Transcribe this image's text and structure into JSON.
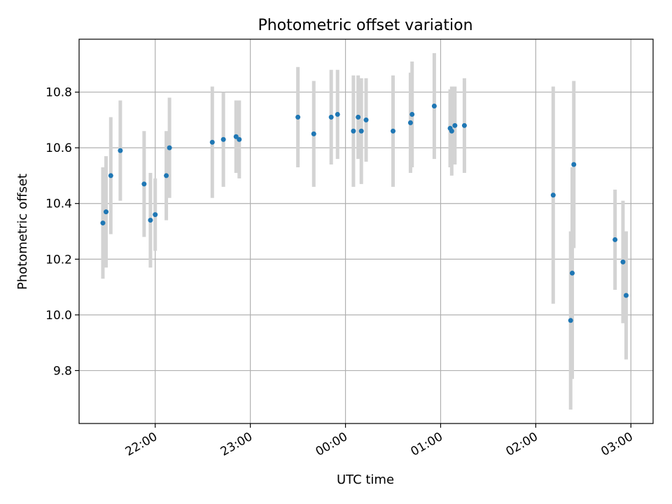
{
  "chart_data": {
    "type": "scatter",
    "title": "Photometric offset variation",
    "xlabel": "UTC time",
    "ylabel": "Photometric offset",
    "x_ticks": [
      "22:00",
      "23:00",
      "00:00",
      "01:00",
      "02:00",
      "03:00"
    ],
    "y_ticks": [
      "9.8",
      "10.0",
      "10.2",
      "10.4",
      "10.6",
      "10.8"
    ],
    "xlim": [
      "21:12",
      "03:14"
    ],
    "ylim": [
      9.61,
      10.99
    ],
    "grid": true,
    "colors": {
      "points": "#1f77b4",
      "errorbars": "#d3d3d3",
      "grid": "#b0b0b0"
    },
    "points": [
      {
        "x": "21:27",
        "y": 10.33,
        "yerr": 0.2
      },
      {
        "x": "21:29",
        "y": 10.37,
        "yerr": 0.2
      },
      {
        "x": "21:32",
        "y": 10.5,
        "yerr": 0.21
      },
      {
        "x": "21:38",
        "y": 10.59,
        "yerr": 0.18
      },
      {
        "x": "21:53",
        "y": 10.47,
        "yerr": 0.19
      },
      {
        "x": "21:57",
        "y": 10.34,
        "yerr": 0.17
      },
      {
        "x": "22:00",
        "y": 10.36,
        "yerr": 0.13
      },
      {
        "x": "22:07",
        "y": 10.5,
        "yerr": 0.16
      },
      {
        "x": "22:09",
        "y": 10.6,
        "yerr": 0.18
      },
      {
        "x": "22:36",
        "y": 10.62,
        "yerr": 0.2
      },
      {
        "x": "22:43",
        "y": 10.63,
        "yerr": 0.17
      },
      {
        "x": "22:51",
        "y": 10.64,
        "yerr": 0.13
      },
      {
        "x": "22:53",
        "y": 10.63,
        "yerr": 0.14
      },
      {
        "x": "23:30",
        "y": 10.71,
        "yerr": 0.18
      },
      {
        "x": "23:40",
        "y": 10.65,
        "yerr": 0.19
      },
      {
        "x": "23:51",
        "y": 10.71,
        "yerr": 0.17
      },
      {
        "x": "23:55",
        "y": 10.72,
        "yerr": 0.16
      },
      {
        "x": "00:05",
        "y": 10.66,
        "yerr": 0.2
      },
      {
        "x": "00:08",
        "y": 10.71,
        "yerr": 0.15
      },
      {
        "x": "00:10",
        "y": 10.66,
        "yerr": 0.19
      },
      {
        "x": "00:13",
        "y": 10.7,
        "yerr": 0.15
      },
      {
        "x": "00:30",
        "y": 10.66,
        "yerr": 0.2
      },
      {
        "x": "00:41",
        "y": 10.69,
        "yerr": 0.18
      },
      {
        "x": "00:42",
        "y": 10.72,
        "yerr": 0.19
      },
      {
        "x": "00:56",
        "y": 10.75,
        "yerr": 0.19
      },
      {
        "x": "01:06",
        "y": 10.67,
        "yerr": 0.14
      },
      {
        "x": "01:07",
        "y": 10.66,
        "yerr": 0.16
      },
      {
        "x": "01:09",
        "y": 10.68,
        "yerr": 0.14
      },
      {
        "x": "01:15",
        "y": 10.68,
        "yerr": 0.17
      },
      {
        "x": "02:11",
        "y": 10.43,
        "yerr": 0.39
      },
      {
        "x": "02:23",
        "y": 10.15,
        "yerr": 0.38
      },
      {
        "x": "02:22",
        "y": 9.98,
        "yerr": 0.32
      },
      {
        "x": "02:24",
        "y": 10.54,
        "yerr": 0.3
      },
      {
        "x": "02:50",
        "y": 10.27,
        "yerr": 0.18
      },
      {
        "x": "02:55",
        "y": 10.19,
        "yerr": 0.22
      },
      {
        "x": "02:57",
        "y": 10.07,
        "yerr": 0.23
      }
    ]
  }
}
